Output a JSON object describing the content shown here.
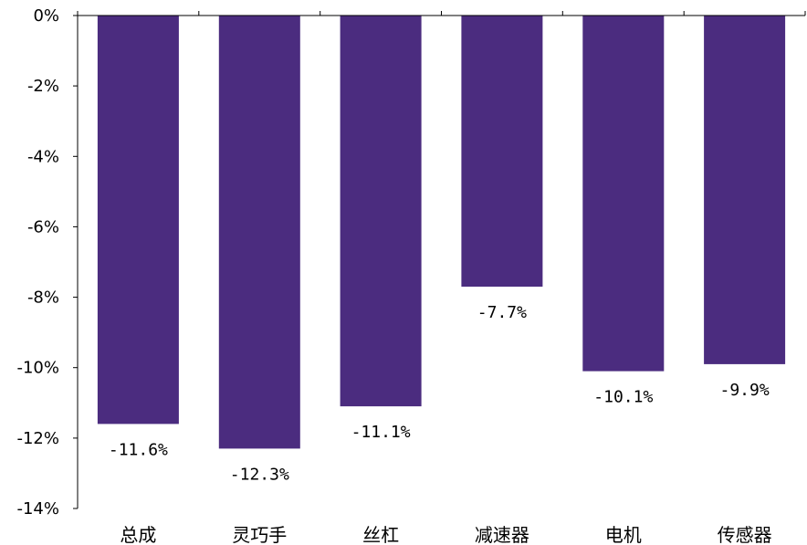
{
  "chart_data": {
    "type": "bar",
    "title": "",
    "xlabel": "",
    "ylabel": "",
    "categories": [
      "总成",
      "灵巧手",
      "丝杠",
      "减速器",
      "电机",
      "传感器"
    ],
    "values": [
      -11.6,
      -12.3,
      -11.1,
      -7.7,
      -10.1,
      -9.9
    ],
    "data_labels": [
      "-11.6%",
      "-12.3%",
      "-11.1%",
      "-7.7%",
      "-10.1%",
      "-9.9%"
    ],
    "ylim": [
      -14,
      0
    ],
    "yticks": [
      0,
      -2,
      -4,
      -6,
      -8,
      -10,
      -12,
      -14
    ],
    "ytick_labels": [
      "0%",
      "-2%",
      "-4%",
      "-6%",
      "-8%",
      "-10%",
      "-12%",
      "-14%"
    ],
    "grid": false,
    "legend": "none",
    "bar_color": "#4b2c7f"
  }
}
